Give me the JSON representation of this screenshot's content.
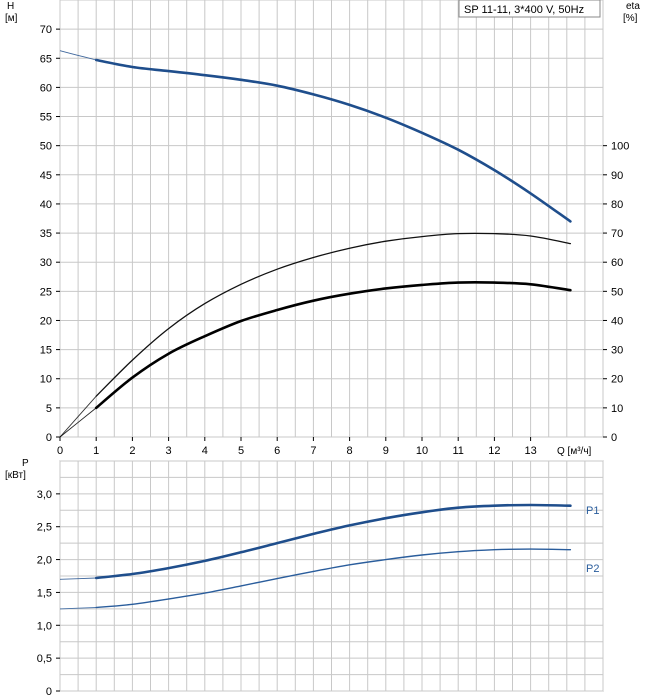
{
  "chart_data": [
    {
      "type": "line",
      "title": "SP 11-11, 3*400 V, 50Hz",
      "left_axis": {
        "name": "H",
        "unit": "[м]",
        "range": [
          0,
          75
        ],
        "ticks": [
          0,
          5,
          10,
          15,
          20,
          25,
          30,
          35,
          40,
          45,
          50,
          55,
          60,
          65,
          70
        ]
      },
      "right_axis": {
        "name": "eta",
        "unit": "[%]",
        "range": [
          0,
          100
        ],
        "ticks": [
          0,
          10,
          20,
          30,
          40,
          50,
          60,
          70,
          80,
          90,
          100
        ]
      },
      "x_axis": {
        "label": "Q [м³/ч]",
        "range": [
          0,
          15
        ],
        "ticks": [
          0,
          1,
          2,
          3,
          4,
          5,
          6,
          7,
          8,
          9,
          10,
          11,
          12,
          13
        ]
      },
      "grid": true,
      "series": [
        {
          "axis": "left",
          "color": "#1f4e8c",
          "width": 2.6,
          "x": [
            1,
            2,
            3,
            4,
            5,
            6,
            7,
            8,
            9,
            10,
            11,
            12,
            13,
            14.1
          ],
          "y": [
            64.7,
            63.5,
            62.8,
            62.1,
            61.3,
            60.3,
            58.8,
            57.0,
            54.8,
            52.2,
            49.3,
            45.8,
            41.8,
            37.0
          ],
          "lead_in": {
            "x": [
              0,
              0.5,
              1
            ],
            "y": [
              66.3,
              65.5,
              64.7
            ]
          }
        },
        {
          "axis": "left",
          "color": "#111111",
          "width": 1.3,
          "x": [
            1,
            2,
            3,
            4,
            5,
            6,
            7,
            8,
            9,
            10,
            11,
            12,
            13,
            14.1
          ],
          "y": [
            7.0,
            13.2,
            18.6,
            22.9,
            26.2,
            28.8,
            30.8,
            32.4,
            33.6,
            34.4,
            34.9,
            34.9,
            34.5,
            33.2
          ],
          "lead_in": {
            "x": [
              0,
              1
            ],
            "y": [
              0,
              7.0
            ]
          }
        },
        {
          "axis": "left",
          "color": "#000000",
          "width": 2.6,
          "x": [
            1,
            2,
            3,
            4,
            5,
            6,
            7,
            8,
            9,
            10,
            11,
            12,
            13,
            14.1
          ],
          "y": [
            5.0,
            10.2,
            14.3,
            17.3,
            19.9,
            21.8,
            23.4,
            24.6,
            25.5,
            26.1,
            26.5,
            26.5,
            26.2,
            25.2
          ],
          "lead_in": {
            "x": [
              0,
              1
            ],
            "y": [
              0,
              5.0
            ]
          }
        }
      ]
    },
    {
      "type": "line",
      "left_axis": {
        "name": "P",
        "unit": "[кВт]",
        "range": [
          0,
          3.5
        ],
        "ticks": [
          "0",
          "0,5",
          "1,0",
          "1,5",
          "2,0",
          "2,5",
          "3,0"
        ]
      },
      "x_axis": {
        "range": [
          0,
          15
        ]
      },
      "grid": true,
      "series": [
        {
          "name": "P1",
          "color": "#1f4e8c",
          "width": 2.6,
          "x": [
            1,
            2,
            3,
            4,
            5,
            6,
            7,
            8,
            9,
            10,
            11,
            12,
            13,
            14.1
          ],
          "y": [
            1.72,
            1.78,
            1.87,
            1.98,
            2.11,
            2.25,
            2.39,
            2.52,
            2.63,
            2.72,
            2.79,
            2.82,
            2.83,
            2.82
          ],
          "lead_in": {
            "x": [
              0,
              1
            ],
            "y": [
              1.7,
              1.72
            ]
          }
        },
        {
          "name": "P2",
          "color": "#2a5d9c",
          "width": 1.4,
          "x": [
            1,
            2,
            3,
            4,
            5,
            6,
            7,
            8,
            9,
            10,
            11,
            12,
            13,
            14.1
          ],
          "y": [
            1.27,
            1.32,
            1.4,
            1.49,
            1.6,
            1.71,
            1.82,
            1.92,
            2.0,
            2.07,
            2.12,
            2.15,
            2.16,
            2.15
          ],
          "lead_in": {
            "x": [
              0,
              1
            ],
            "y": [
              1.25,
              1.27
            ]
          }
        }
      ]
    }
  ]
}
